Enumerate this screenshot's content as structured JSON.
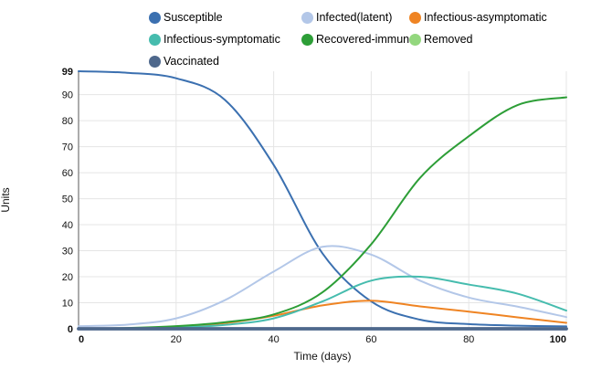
{
  "chart_data": {
    "type": "line",
    "title": "",
    "xlabel": "Time (days)",
    "ylabel": "Units",
    "x": [
      0,
      10,
      20,
      30,
      40,
      50,
      60,
      70,
      80,
      90,
      100
    ],
    "xlim": [
      0,
      100
    ],
    "ylim": [
      0,
      99
    ],
    "x_ticks": [
      0,
      20,
      40,
      60,
      80,
      100
    ],
    "y_ticks": [
      0,
      10,
      20,
      30,
      40,
      50,
      60,
      70,
      80,
      90,
      99
    ],
    "grid": true,
    "legend_position": "top",
    "series": [
      {
        "name": "Susceptible",
        "color": "#3b70b0",
        "width": 2,
        "values": [
          99,
          98.4,
          96.3,
          88,
          63,
          29,
          10.5,
          3.5,
          1.8,
          1.2,
          0.9
        ]
      },
      {
        "name": "Infected(latent)",
        "color": "#b3c7e8",
        "width": 2,
        "values": [
          1,
          1.6,
          4,
          11,
          22,
          31.5,
          28.5,
          18.5,
          12,
          8.5,
          4.5
        ]
      },
      {
        "name": "Infectious-asymptomatic",
        "color": "#ef8423",
        "width": 2,
        "values": [
          0,
          0.2,
          0.8,
          2.2,
          5,
          9,
          10.8,
          8.6,
          6.6,
          4.4,
          2.3
        ]
      },
      {
        "name": "Infectious-symptomatic",
        "color": "#46bcae",
        "width": 2,
        "values": [
          0,
          0.1,
          0.5,
          1.5,
          4,
          10.5,
          18.5,
          20,
          17,
          13.5,
          7
        ]
      },
      {
        "name": "Recovered-immune",
        "color": "#2d9e37",
        "width": 2,
        "values": [
          0,
          0.3,
          1,
          2.5,
          5.5,
          14,
          32.5,
          58,
          74,
          86,
          89
        ]
      },
      {
        "name": "Removed",
        "color": "#93d77e",
        "width": 2,
        "values": [
          0,
          0,
          0,
          0,
          0,
          0,
          0,
          0,
          0,
          0,
          0
        ]
      },
      {
        "name": "Vaccinated",
        "color": "#4e688c",
        "width": 3.8,
        "values": [
          0,
          0,
          0,
          0,
          0,
          0,
          0,
          0,
          0,
          0,
          0
        ]
      }
    ]
  },
  "style_colors": {
    "grid": "#e5e5e5",
    "axis": "#888888",
    "tick_text": "#111111"
  }
}
